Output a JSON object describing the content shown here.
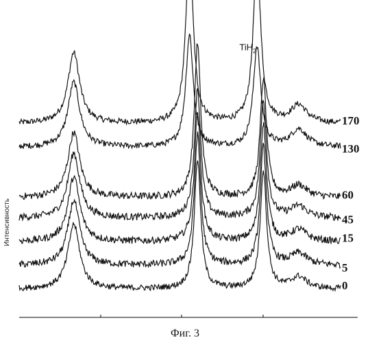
{
  "chart_data": {
    "type": "line",
    "caption": "Фиг. 3",
    "ylabel": "Интенсивность",
    "xlabel": "",
    "grid": false,
    "peak_label": {
      "main": "TiH",
      "sub": "2"
    },
    "annotations": [
      {
        "text": "TiH",
        "sub": "2",
        "peak": 1
      },
      {
        "text": "TiH",
        "sub": "2",
        "peak": 4
      }
    ],
    "peaks": [
      {
        "x": 0.17,
        "width": 0.022
      },
      {
        "x": 0.53,
        "width": 0.014
      },
      {
        "x": 0.555,
        "width": 0.012
      },
      {
        "x": 0.74,
        "width": 0.014
      },
      {
        "x": 0.76,
        "width": 0.012
      },
      {
        "x": 0.87,
        "width": 0.03
      }
    ],
    "series": [
      {
        "name": "170",
        "baseline": 0.6,
        "heights": [
          0.24,
          0.58,
          0.0,
          0.56,
          0.0,
          0.06
        ],
        "noise": 0.01
      },
      {
        "name": "130",
        "baseline": 0.52,
        "heights": [
          0.22,
          0.38,
          0.0,
          0.34,
          0.0,
          0.06
        ],
        "noise": 0.01
      },
      {
        "name": "60",
        "baseline": 0.35,
        "heights": [
          0.22,
          0.0,
          0.52,
          0.0,
          0.4,
          0.04
        ],
        "noise": 0.012
      },
      {
        "name": "45",
        "baseline": 0.28,
        "heights": [
          0.22,
          0.0,
          0.44,
          0.0,
          0.4,
          0.04
        ],
        "noise": 0.012
      },
      {
        "name": "15",
        "baseline": 0.2,
        "heights": [
          0.22,
          0.0,
          0.44,
          0.0,
          0.4,
          0.04
        ],
        "noise": 0.012
      },
      {
        "name": "5",
        "baseline": 0.12,
        "heights": [
          0.22,
          0.0,
          0.44,
          0.0,
          0.4,
          0.04
        ],
        "noise": 0.012
      },
      {
        "name": "0",
        "baseline": 0.04,
        "heights": [
          0.22,
          0.0,
          0.44,
          0.0,
          0.4,
          0.04
        ],
        "noise": 0.01
      }
    ]
  }
}
